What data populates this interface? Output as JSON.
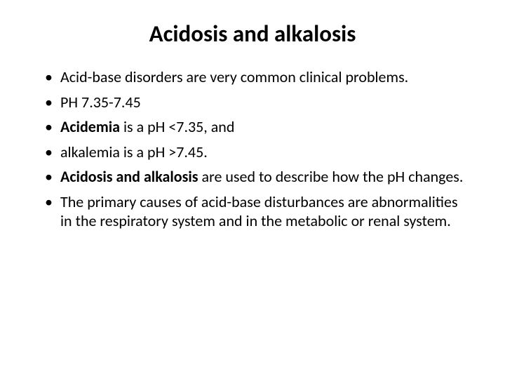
{
  "background_color": "#ffffff",
  "text_color": "#000000",
  "title": {
    "text": "Acidosis and alkalosis",
    "fontsize": 33,
    "weight": 700,
    "align": "center"
  },
  "body": {
    "fontsize": 22,
    "line_height": 1.25,
    "bullet_color": "#000000"
  },
  "bullets": [
    {
      "pre": "Acid-base disorders are very common clinical problems.",
      "bold": "",
      "post": ""
    },
    {
      "pre": "PH 7.35-7.45",
      "bold": "",
      "post": ""
    },
    {
      "pre": "",
      "bold": "Acidemia",
      "post": " is a pH <7.35, and"
    },
    {
      "pre": "alkalemia is a pH >7.45.",
      "bold": "",
      "post": ""
    },
    {
      "pre": "",
      "bold": "Acidosis and alkalosis",
      "post": " are used to describe how the pH changes."
    },
    {
      "pre": "The primary causes of acid-base disturbances are abnormalities in the respiratory system and in the metabolic or renal system.",
      "bold": "",
      "post": ""
    }
  ]
}
